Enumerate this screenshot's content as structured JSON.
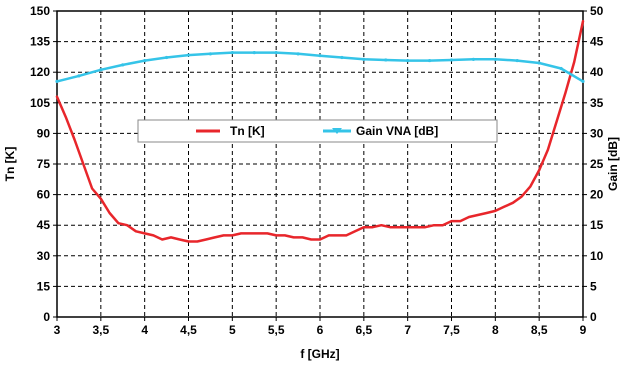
{
  "chart_data": {
    "type": "line",
    "xlabel": "f [GHz]",
    "ylabel_left": "Tn [K]",
    "ylabel_right": "Gain [dB]",
    "xlim": [
      3,
      9
    ],
    "ylim_left": [
      0,
      150
    ],
    "ylim_right": [
      0,
      50
    ],
    "xticks": [
      3,
      3.5,
      4,
      4.5,
      5,
      5.5,
      6,
      6.5,
      7,
      7.5,
      8,
      8.5,
      9
    ],
    "xtick_labels": [
      "3",
      "3,5",
      "4",
      "4,5",
      "5",
      "5,5",
      "6",
      "6,5",
      "7",
      "7,5",
      "8",
      "8,5",
      "9"
    ],
    "yticks_left": [
      0,
      15,
      30,
      45,
      60,
      75,
      90,
      105,
      120,
      135,
      150
    ],
    "ytick_labels_left": [
      "0",
      "15",
      "30",
      "45",
      "60",
      "75",
      "90",
      "105",
      "120",
      "135",
      "150"
    ],
    "yticks_right": [
      0,
      5,
      10,
      15,
      20,
      25,
      30,
      35,
      40,
      45,
      50
    ],
    "ytick_labels_right": [
      "0",
      "5",
      "10",
      "15",
      "20",
      "25",
      "30",
      "35",
      "40",
      "45",
      "50"
    ],
    "grid": true,
    "legend_position": "center",
    "series": [
      {
        "name": "Tn [K]",
        "axis": "left",
        "color": "#e8262b",
        "x": [
          3.0,
          3.1,
          3.2,
          3.3,
          3.4,
          3.5,
          3.6,
          3.7,
          3.8,
          3.9,
          4.0,
          4.1,
          4.2,
          4.3,
          4.4,
          4.5,
          4.6,
          4.7,
          4.8,
          4.9,
          5.0,
          5.1,
          5.2,
          5.3,
          5.4,
          5.5,
          5.6,
          5.7,
          5.8,
          5.9,
          6.0,
          6.1,
          6.2,
          6.3,
          6.4,
          6.5,
          6.6,
          6.7,
          6.8,
          6.9,
          7.0,
          7.1,
          7.2,
          7.3,
          7.4,
          7.5,
          7.6,
          7.7,
          7.8,
          7.9,
          8.0,
          8.1,
          8.2,
          8.3,
          8.4,
          8.5,
          8.6,
          8.7,
          8.8,
          8.9,
          9.0
        ],
        "y": [
          108,
          98,
          87,
          75,
          63,
          58,
          51,
          46,
          45,
          42,
          41,
          40,
          38,
          39,
          38,
          37,
          37,
          38,
          39,
          40,
          40,
          41,
          41,
          41,
          41,
          40,
          40,
          39,
          39,
          38,
          38,
          40,
          40,
          40,
          42,
          44,
          44,
          45,
          44,
          44,
          44,
          44,
          44,
          45,
          45,
          47,
          47,
          49,
          50,
          51,
          52,
          54,
          56,
          59,
          64,
          72,
          82,
          96,
          110,
          125,
          145
        ]
      },
      {
        "name": "Gain VNA [dB]",
        "axis": "right",
        "color": "#35c4e8",
        "x": [
          3.0,
          3.25,
          3.5,
          3.75,
          4.0,
          4.25,
          4.5,
          4.75,
          5.0,
          5.25,
          5.5,
          5.75,
          6.0,
          6.25,
          6.5,
          6.75,
          7.0,
          7.25,
          7.5,
          7.75,
          8.0,
          8.25,
          8.5,
          8.75,
          9.0
        ],
        "y": [
          38.5,
          39.4,
          40.4,
          41.2,
          41.9,
          42.4,
          42.8,
          43.0,
          43.2,
          43.2,
          43.2,
          43.0,
          42.7,
          42.4,
          42.1,
          42.0,
          41.9,
          41.9,
          42.0,
          42.1,
          42.1,
          41.9,
          41.5,
          40.6,
          38.5
        ]
      }
    ]
  }
}
